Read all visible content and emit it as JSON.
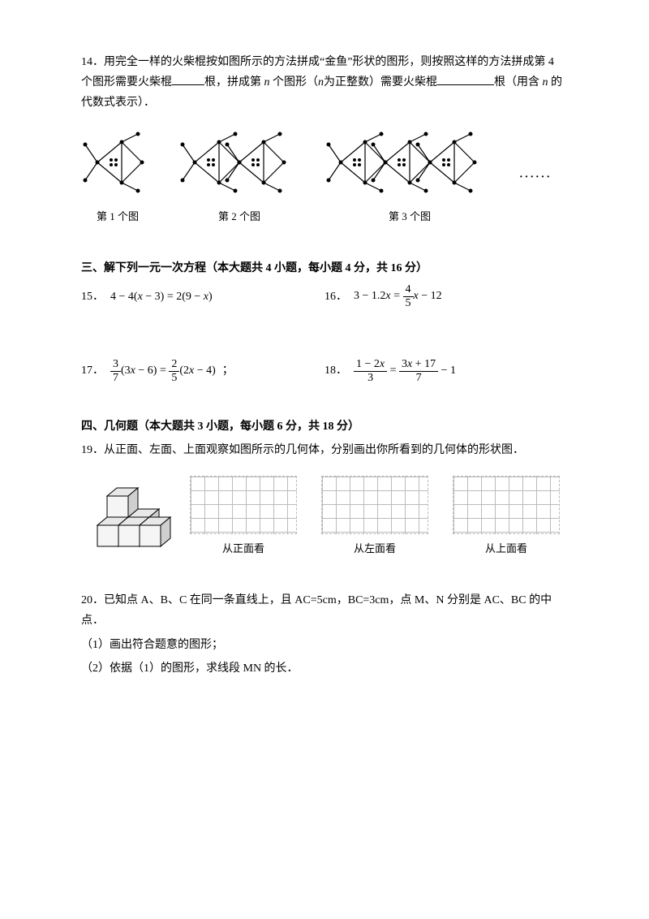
{
  "q14": {
    "text_a": "14．用完全一样的火柴棍按如图所示的方法拼成“金鱼”形状的图形，则按照这样的方法拼成第 4 个图形需要火柴棍",
    "text_b": "根，拼成第",
    "text_c": "个图形（",
    "text_d": "为正整数）需要火柴棍",
    "text_e": "根（用含",
    "text_f": "的代数式表示）．",
    "n": "n",
    "blank1_width": 40,
    "blank2_width": 70,
    "fig_labels": [
      "第 1 个图",
      "第 2 个图",
      "第 3 个图"
    ],
    "dots": "······"
  },
  "section3": {
    "title": "三、解下列一元一次方程（本大题共 4 小题，每小题 4 分，共 16 分）",
    "eq15": {
      "num": "15．",
      "lhs": "4 − 4(",
      "x1": "x",
      "mid1": " − 3) = 2(9 − ",
      "x2": "x",
      "end": ")"
    },
    "eq16": {
      "num": "16．",
      "lhs": "3 − 1.2",
      "x1": "x",
      "eq": " = ",
      "frac_num": "4",
      "frac_den": "5",
      "x2": "x",
      "end": " − 12"
    },
    "eq17": {
      "num": "17．",
      "f1_num": "3",
      "f1_den": "7",
      "p1a": "(3",
      "x1": "x",
      "p1b": " − 6) = ",
      "f2_num": "2",
      "f2_den": "5",
      "p2a": "(2",
      "x2": "x",
      "p2b": " − 4)",
      "semi": "；"
    },
    "eq18": {
      "num": "18．",
      "f1_num_a": "1 − 2",
      "f1_num_x": "x",
      "f1_den": "3",
      "eq": " = ",
      "f2_num_a": "3",
      "f2_num_x": "x",
      "f2_num_b": " + 17",
      "f2_den": "7",
      "end": " − 1"
    }
  },
  "section4": {
    "title": "四、几何题（本大题共 3 小题，每小题 6 分，共 18 分）",
    "q19": "19．从正面、左面、上面观察如图所示的几何体，分别画出你所看到的几何体的形状图．",
    "view_labels": [
      "从正面看",
      "从左面看",
      "从上面看"
    ]
  },
  "q20": {
    "line1": "20．已知点 A、B、C 在同一条直线上，且 AC=5cm，BC=3cm，点 M、N 分别是 AC、BC 的中点．",
    "line2": "（1）画出符合题意的图形；",
    "line3": "（2）依据（1）的图形，求线段 MN 的长．"
  },
  "fish": {
    "node_r": 2.5,
    "stroke": "#000",
    "fill": "#000"
  },
  "cubes": {
    "stroke": "#000",
    "fill_top": "#e8e8e8",
    "fill_side": "#cfcfcf",
    "fill_front": "#f5f5f5"
  }
}
